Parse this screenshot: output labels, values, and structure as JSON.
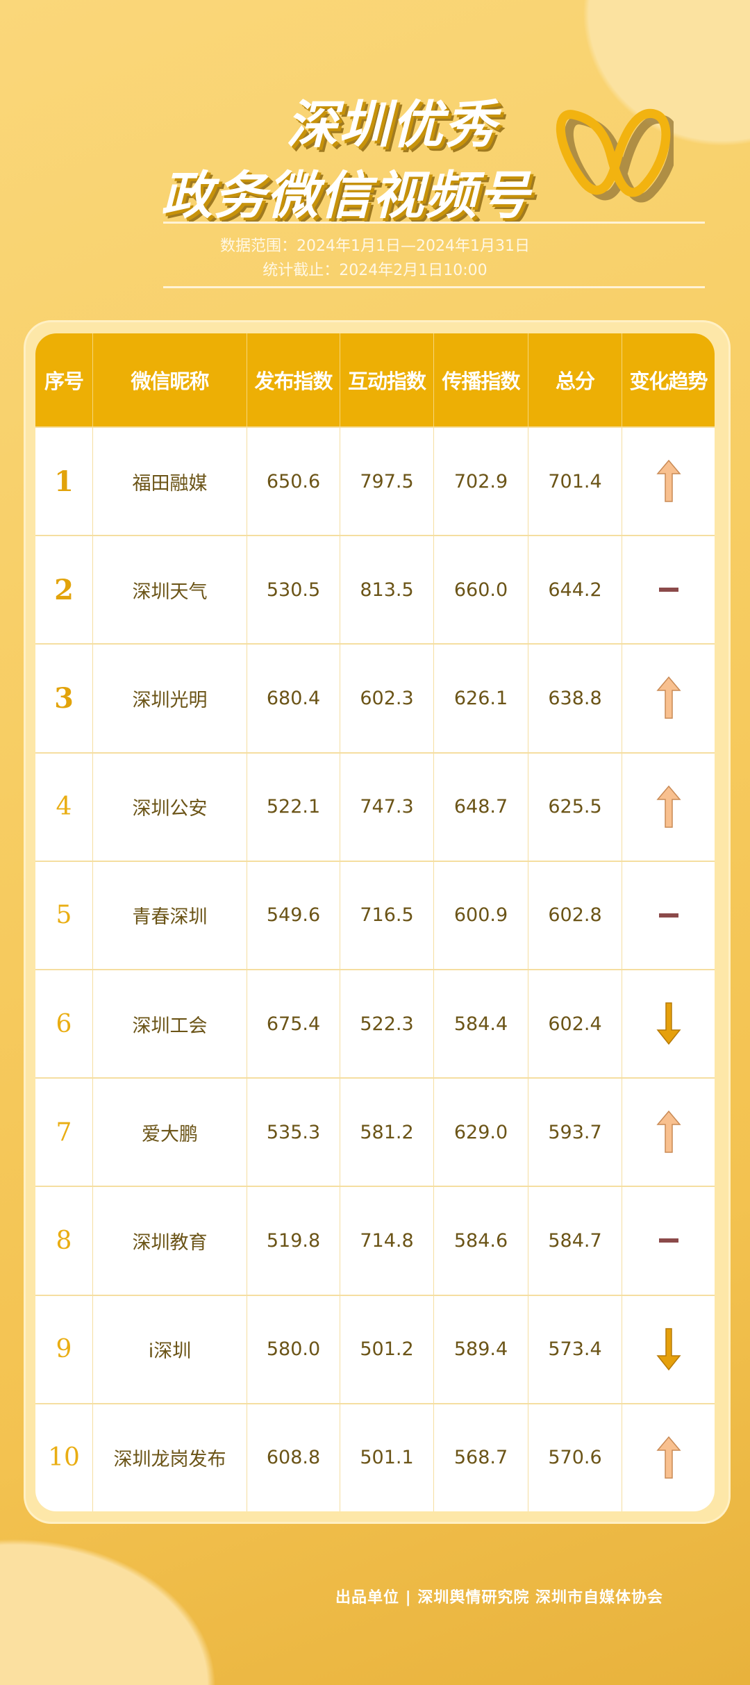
{
  "header": {
    "title_line1": "深圳优秀",
    "title_line2": "政务微信视频号",
    "data_range": "数据范围：2024年1月1日—2024年1月31日",
    "cutoff": "统计截止：2024年2月1日10:00"
  },
  "colors": {
    "header_fill": "#edaf05",
    "up": "#f8c08f",
    "down": "#e5a00c",
    "flat": "#8b4a4a"
  },
  "table": {
    "columns": [
      "序号",
      "微信昵称",
      "发布指数",
      "互动指数",
      "传播指数",
      "总分",
      "变化趋势"
    ],
    "rows": [
      {
        "rank": "1",
        "name": "福田融媒",
        "publish": "650.6",
        "interact": "797.5",
        "spread": "702.9",
        "total": "701.4",
        "trend": "up"
      },
      {
        "rank": "2",
        "name": "深圳天气",
        "publish": "530.5",
        "interact": "813.5",
        "spread": "660.0",
        "total": "644.2",
        "trend": "flat"
      },
      {
        "rank": "3",
        "name": "深圳光明",
        "publish": "680.4",
        "interact": "602.3",
        "spread": "626.1",
        "total": "638.8",
        "trend": "up"
      },
      {
        "rank": "4",
        "name": "深圳公安",
        "publish": "522.1",
        "interact": "747.3",
        "spread": "648.7",
        "total": "625.5",
        "trend": "up"
      },
      {
        "rank": "5",
        "name": "青春深圳",
        "publish": "549.6",
        "interact": "716.5",
        "spread": "600.9",
        "total": "602.8",
        "trend": "flat"
      },
      {
        "rank": "6",
        "name": "深圳工会",
        "publish": "675.4",
        "interact": "522.3",
        "spread": "584.4",
        "total": "602.4",
        "trend": "down"
      },
      {
        "rank": "7",
        "name": "爱大鹏",
        "publish": "535.3",
        "interact": "581.2",
        "spread": "629.0",
        "total": "593.7",
        "trend": "up"
      },
      {
        "rank": "8",
        "name": "深圳教育",
        "publish": "519.8",
        "interact": "714.8",
        "spread": "584.6",
        "total": "584.7",
        "trend": "flat"
      },
      {
        "rank": "9",
        "name": "i深圳",
        "publish": "580.0",
        "interact": "501.2",
        "spread": "589.4",
        "total": "573.4",
        "trend": "down"
      },
      {
        "rank": "10",
        "name": "深圳龙岗发布",
        "publish": "608.8",
        "interact": "501.1",
        "spread": "568.7",
        "total": "570.6",
        "trend": "up"
      }
    ]
  },
  "footer": {
    "producer": "出品单位 | 深圳舆情研究院 深圳市自媒体协会"
  }
}
